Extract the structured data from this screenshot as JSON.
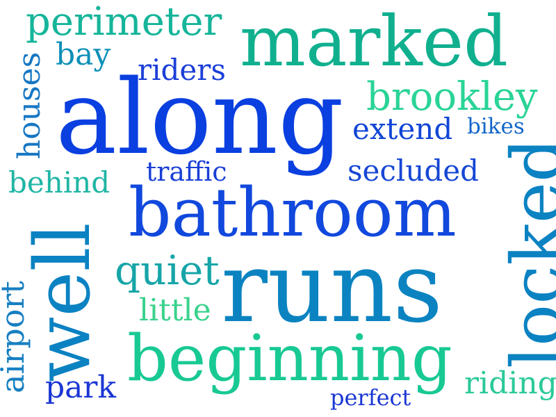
{
  "words": {
    "along": {
      "text": "along",
      "color": "#0a3fe0"
    },
    "bathroom": {
      "text": "bathroom",
      "color": "#1148dd"
    },
    "runs": {
      "text": "runs",
      "color": "#0b83c0"
    },
    "marked": {
      "text": "marked",
      "color": "#10b08f"
    },
    "beginning": {
      "text": "beginning",
      "color": "#18c994"
    },
    "well": {
      "text": "well",
      "color": "#0b82c2"
    },
    "locked": {
      "text": "locked",
      "color": "#0b82c2"
    },
    "perimeter": {
      "text": "perimeter",
      "color": "#15b59a"
    },
    "brookley": {
      "text": "brookley",
      "color": "#2ad496"
    },
    "riders": {
      "text": "riders",
      "color": "#1b3fd8"
    },
    "bay": {
      "text": "bay",
      "color": "#0d8fb8"
    },
    "houses": {
      "text": "houses",
      "color": "#1677c4"
    },
    "extend": {
      "text": "extend",
      "color": "#1145d6"
    },
    "bikes": {
      "text": "bikes",
      "color": "#1467c9"
    },
    "traffic": {
      "text": "traffic",
      "color": "#1a3fd6"
    },
    "secluded": {
      "text": "secluded",
      "color": "#1646d4"
    },
    "behind": {
      "text": "behind",
      "color": "#20b5a4"
    },
    "quiet": {
      "text": "quiet",
      "color": "#16a5a8"
    },
    "little": {
      "text": "little",
      "color": "#39d28c"
    },
    "airport": {
      "text": "airport",
      "color": "#177fc2"
    },
    "park": {
      "text": "park",
      "color": "#1a36d4"
    },
    "perfect": {
      "text": "perfect",
      "color": "#1a36d4"
    },
    "riding": {
      "text": "riding",
      "color": "#2bc99a"
    }
  }
}
